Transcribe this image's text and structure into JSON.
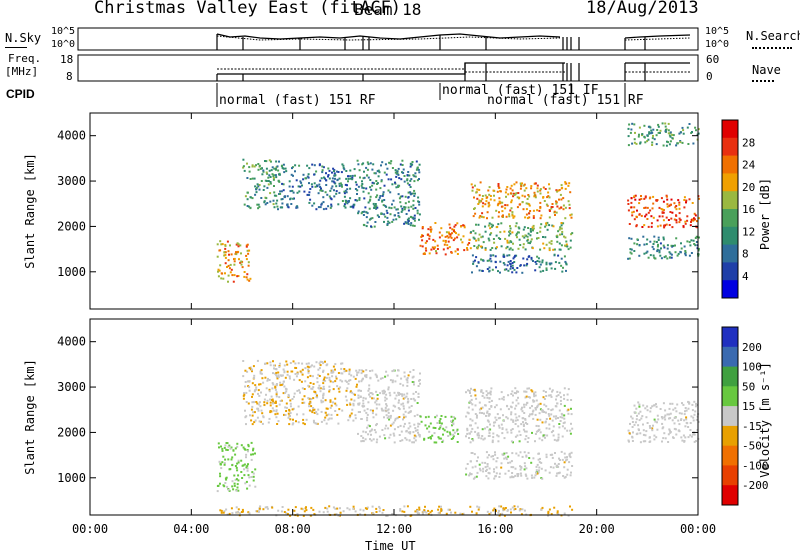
{
  "header": {
    "title": "Christmas Valley East (fitACF)",
    "beam": "Beam 18",
    "date": "18/Aug/2013"
  },
  "top_panels": {
    "nsky_label": "N.Sky",
    "nsky_ticks": [
      "10^5",
      "10^0"
    ],
    "nsearch_label": "N.Search",
    "freq_label_1": "Freq.",
    "freq_label_2": "[MHz]",
    "freq_ticks": [
      "18",
      "8"
    ],
    "nave_ticks": [
      "60",
      "0"
    ],
    "nave_label": "Nave",
    "cpid_label": "CPID",
    "cpid_segments": [
      "normal (fast) 151 RF",
      "normal (fast) 151 IF",
      "normal (fast) 151 RF"
    ]
  },
  "colorbars": {
    "power": {
      "label": "Power [dB]",
      "ticks": [
        "28",
        "24",
        "20",
        "16",
        "12",
        "8",
        "4"
      ],
      "colors": [
        "#0000e0",
        "#1f3fa8",
        "#2f6e9a",
        "#2f8c6e",
        "#4aa05a",
        "#9ab840",
        "#f0a000",
        "#f07000",
        "#e83010",
        "#e00000"
      ]
    },
    "velocity": {
      "label": "Velocity [m s⁻¹]",
      "ticks": [
        "200",
        "100",
        "50",
        "15",
        "-15",
        "-50",
        "-100",
        "-200"
      ],
      "colors": [
        "#2030c0",
        "#3a6ab0",
        "#40a040",
        "#68c840",
        "#c8c8c8",
        "#e8a000",
        "#f07000",
        "#e84000",
        "#e00000"
      ]
    }
  },
  "axes": {
    "ylabel": "Slant Range [km]",
    "xlabel": "Time UT",
    "x_ticks": [
      "00:00",
      "04:00",
      "08:00",
      "12:00",
      "16:00",
      "20:00",
      "00:00"
    ],
    "y_ticks": [
      "1000",
      "2000",
      "3000",
      "4000"
    ]
  },
  "chart_data": [
    {
      "type": "heatmap",
      "title": "",
      "xlabel": "Time UT",
      "ylabel": "Slant Range [km]",
      "variable": "Power [dB]",
      "xlim": [
        0,
        24
      ],
      "ylim": [
        180,
        4500
      ],
      "clim": [
        0,
        30
      ],
      "bands": [
        {
          "t0": 5.0,
          "t1": 6.3,
          "r0": 800,
          "r1": 1700,
          "v": 20
        },
        {
          "t0": 6.0,
          "t1": 7.5,
          "r0": 2400,
          "r1": 3500,
          "v": 12
        },
        {
          "t0": 7.5,
          "t1": 10.5,
          "r0": 2400,
          "r1": 3400,
          "v": 8
        },
        {
          "t0": 10.5,
          "t1": 13.0,
          "r0": 2000,
          "r1": 3500,
          "v": 10
        },
        {
          "t0": 13.0,
          "t1": 15.0,
          "r0": 1400,
          "r1": 2100,
          "v": 22
        },
        {
          "t0": 15.0,
          "t1": 19.0,
          "r0": 2200,
          "r1": 3000,
          "v": 20
        },
        {
          "t0": 15.0,
          "t1": 19.0,
          "r0": 1500,
          "r1": 2100,
          "v": 14
        },
        {
          "t0": 15.0,
          "t1": 19.0,
          "r0": 1000,
          "r1": 1400,
          "v": 8
        },
        {
          "t0": 21.2,
          "t1": 24.0,
          "r0": 2000,
          "r1": 2700,
          "v": 24
        },
        {
          "t0": 21.2,
          "t1": 24.0,
          "r0": 1300,
          "r1": 1800,
          "v": 10
        },
        {
          "t0": 21.2,
          "t1": 24.0,
          "r0": 3800,
          "r1": 4300,
          "v": 12
        }
      ]
    },
    {
      "type": "heatmap",
      "title": "",
      "xlabel": "Time UT",
      "ylabel": "Slant Range [km]",
      "variable": "Velocity [m s⁻¹]",
      "xlim": [
        0,
        24
      ],
      "ylim": [
        180,
        4500
      ],
      "clim": [
        -250,
        250
      ],
      "bands": [
        {
          "t0": 5.0,
          "t1": 6.5,
          "r0": 700,
          "r1": 1800,
          "v": 40
        },
        {
          "t0": 6.0,
          "t1": 10.5,
          "r0": 2200,
          "r1": 3600,
          "v": -20
        },
        {
          "t0": 10.5,
          "t1": 13.0,
          "r0": 1800,
          "r1": 3400,
          "v": 0
        },
        {
          "t0": 13.0,
          "t1": 14.5,
          "r0": 1800,
          "r1": 2400,
          "v": 40
        },
        {
          "t0": 14.8,
          "t1": 19.0,
          "r0": 1800,
          "r1": 3000,
          "v": 0
        },
        {
          "t0": 14.8,
          "t1": 19.0,
          "r0": 1000,
          "r1": 1600,
          "v": 0
        },
        {
          "t0": 21.2,
          "t1": 24.0,
          "r0": 1800,
          "r1": 2700,
          "v": 0
        },
        {
          "t0": 5.0,
          "t1": 19.0,
          "r0": 180,
          "r1": 400,
          "v": -30
        }
      ]
    }
  ]
}
